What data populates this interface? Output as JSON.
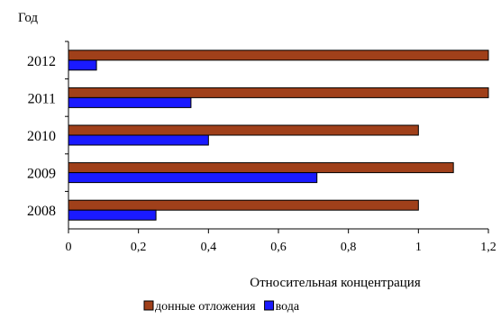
{
  "chart_data": {
    "type": "bar",
    "orientation": "horizontal",
    "title": "",
    "ylabel": "Год",
    "xlabel": "Относительная концентрация",
    "categories": [
      "2012",
      "2011",
      "2010",
      "2009",
      "2008"
    ],
    "series": [
      {
        "name": "донные отложения",
        "color": "#a0401a",
        "values": [
          1.2,
          1.2,
          1.0,
          1.1,
          1.0
        ]
      },
      {
        "name": "вода",
        "color": "#1a1aff",
        "values": [
          0.08,
          0.35,
          0.4,
          0.71,
          0.25
        ]
      }
    ],
    "xlim": [
      0,
      1.2
    ],
    "xticks": [
      "0",
      "0,2",
      "0,4",
      "0,6",
      "0,8",
      "1",
      "1,2"
    ],
    "grid": false,
    "legend_position": "bottom"
  }
}
